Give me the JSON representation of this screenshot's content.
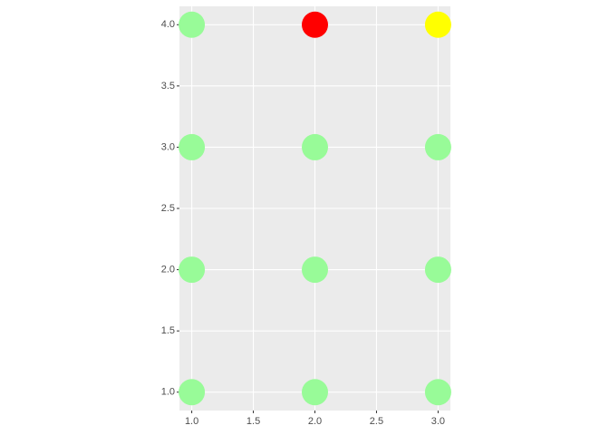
{
  "chart_data": {
    "type": "scatter",
    "x": [
      1,
      1,
      1,
      1,
      2,
      2,
      2,
      2,
      3,
      3,
      3,
      3
    ],
    "values": [
      1,
      2,
      3,
      4,
      1,
      2,
      3,
      4,
      1,
      2,
      3,
      4
    ],
    "colors": [
      "#98fb98",
      "#98fb98",
      "#98fb98",
      "#98fb98",
      "#98fb98",
      "#98fb98",
      "#98fb98",
      "#ff0000",
      "#98fb98",
      "#98fb98",
      "#98fb98",
      "#ffff00"
    ],
    "xlim": [
      0.9,
      3.1
    ],
    "ylim": [
      0.85,
      4.15
    ],
    "xticks": [
      {
        "value": 1,
        "label": "1.0"
      },
      {
        "value": 1.5,
        "label": "1.5"
      },
      {
        "value": 2,
        "label": "2.0"
      },
      {
        "value": 2.5,
        "label": "2.5"
      },
      {
        "value": 3,
        "label": "3.0"
      }
    ],
    "yticks": [
      {
        "value": 1,
        "label": "1.0"
      },
      {
        "value": 1.5,
        "label": "1.5"
      },
      {
        "value": 2,
        "label": "2.0"
      },
      {
        "value": 2.5,
        "label": "2.5"
      },
      {
        "value": 3,
        "label": "3.0"
      },
      {
        "value": 3.5,
        "label": "3.5"
      },
      {
        "value": 4,
        "label": "4.0"
      }
    ],
    "grid": true
  }
}
